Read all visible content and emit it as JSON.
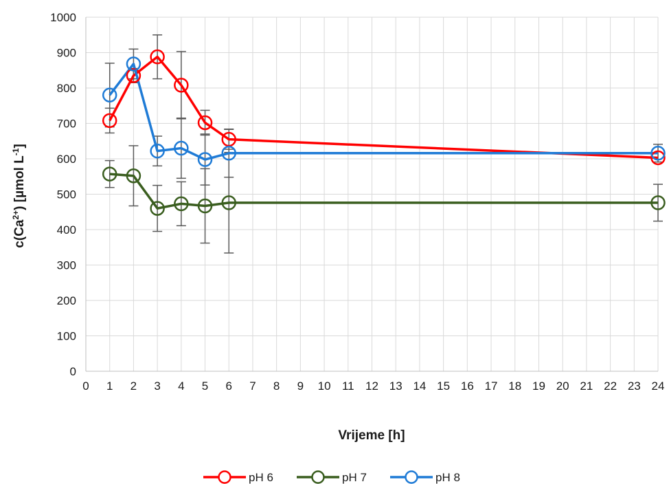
{
  "chart_data": {
    "type": "line",
    "xlabel": "Vrijeme [h]",
    "ylabel_parts": {
      "pre": "c(Ca",
      "sup1": "2+",
      "mid": ") [µmol L",
      "sup2": "-1",
      "post": "]"
    },
    "xlim": [
      0,
      24
    ],
    "ylim": [
      0,
      1000
    ],
    "x_ticks": [
      0,
      1,
      2,
      3,
      4,
      5,
      6,
      7,
      8,
      9,
      10,
      11,
      12,
      13,
      14,
      15,
      16,
      17,
      18,
      19,
      20,
      21,
      22,
      23,
      24
    ],
    "y_ticks": [
      0,
      100,
      200,
      300,
      400,
      500,
      600,
      700,
      800,
      900,
      1000
    ],
    "grid": true,
    "legend_position": "bottom",
    "series": [
      {
        "name": "pH 6",
        "color": "#ff0000",
        "x": [
          1,
          2,
          3,
          4,
          5,
          6,
          24
        ],
        "y": [
          708,
          835,
          888,
          808,
          702,
          655,
          603
        ],
        "err": [
          35,
          20,
          62,
          95,
          35,
          28,
          0
        ]
      },
      {
        "name": "pH 7",
        "color": "#3a5e1f",
        "x": [
          1,
          2,
          3,
          4,
          5,
          6,
          24
        ],
        "y": [
          557,
          552,
          460,
          473,
          467,
          476,
          476
        ],
        "err": [
          38,
          85,
          65,
          62,
          105,
          142,
          52
        ]
      },
      {
        "name": "pH 8",
        "color": "#1f7bd6",
        "x": [
          1,
          2,
          3,
          4,
          5,
          6,
          24
        ],
        "y": [
          780,
          868,
          622,
          630,
          598,
          616,
          616
        ],
        "err": [
          90,
          42,
          42,
          85,
          72,
          68,
          25
        ]
      }
    ]
  }
}
